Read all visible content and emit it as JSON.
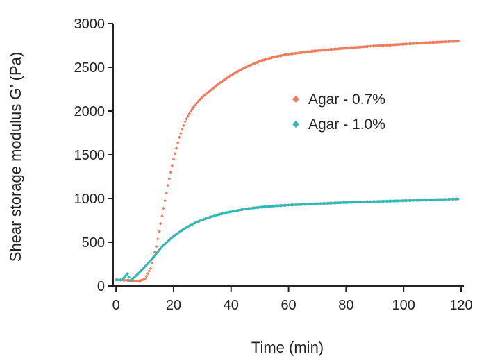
{
  "chart_data": {
    "type": "scatter",
    "title": "",
    "xlabel": "Time (min)",
    "ylabel": "Shear storage modulus G’ (Pa)",
    "xlim": [
      -1,
      120
    ],
    "ylim": [
      0,
      3000
    ],
    "xticks": [
      "0",
      "20",
      "40",
      "60",
      "80",
      "100",
      "120"
    ],
    "yticks": [
      "0",
      "500",
      "1000",
      "1500",
      "2000",
      "2500",
      "3000"
    ],
    "grid": false,
    "legend_position": "upper-right-center",
    "series": [
      {
        "name": "Agar - 0.7%",
        "color": "#f07c5b",
        "marker": "diamond",
        "x": [
          0,
          4,
          8,
          10,
          12,
          14,
          16,
          18,
          20,
          22,
          24,
          26,
          28,
          30,
          33,
          36,
          40,
          45,
          50,
          55,
          60,
          70,
          80,
          90,
          100,
          110,
          119
        ],
        "y": [
          70,
          65,
          55,
          80,
          200,
          450,
          800,
          1150,
          1450,
          1700,
          1880,
          2000,
          2090,
          2160,
          2240,
          2320,
          2410,
          2500,
          2570,
          2620,
          2650,
          2690,
          2720,
          2745,
          2765,
          2785,
          2800
        ]
      },
      {
        "name": "Agar - 1.0%",
        "color": "#2fb8b5",
        "marker": "diamond",
        "x": [
          0,
          2,
          4,
          5,
          6,
          8,
          10,
          12,
          14,
          16,
          18,
          20,
          24,
          28,
          32,
          36,
          40,
          45,
          50,
          55,
          60,
          70,
          80,
          90,
          100,
          110,
          119
        ],
        "y": [
          70,
          70,
          140,
          60,
          90,
          150,
          220,
          290,
          370,
          450,
          510,
          570,
          660,
          730,
          780,
          820,
          850,
          880,
          900,
          915,
          925,
          940,
          955,
          965,
          975,
          985,
          995
        ]
      }
    ]
  }
}
